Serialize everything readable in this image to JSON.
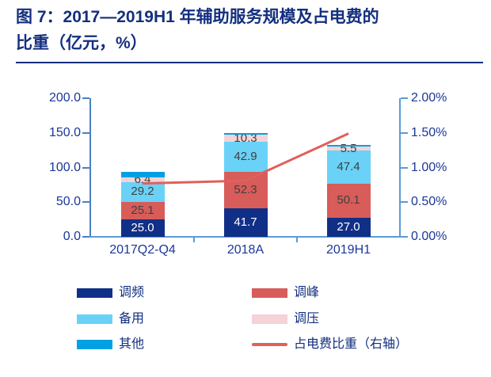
{
  "title": {
    "line1": "图 7：2017—2019H1 年辅助服务规模及占电费的",
    "line2": "比重（亿元，%）"
  },
  "colors": {
    "title_text": "#132F7E",
    "axis_label_text": "#1B3799",
    "data_label_gray": "#404040",
    "data_label_white": "#FFFFFF",
    "left_axis_line": "#4A80C2",
    "right_axis_line": "#5B9BD5",
    "baseline": "#5B9BD5"
  },
  "chart_data": {
    "type": "bar",
    "subtype": "stacked-bar-with-line",
    "categories": [
      "2017Q2-Q4",
      "2018A",
      "2019H1"
    ],
    "series": [
      {
        "name": "调频",
        "color": "#102F87",
        "values": [
          25.0,
          41.7,
          27.0
        ],
        "labels": [
          "25.0",
          "41.7",
          "27.0"
        ],
        "label_color": "#FFFFFF"
      },
      {
        "name": "调峰",
        "color": "#D85C59",
        "values": [
          25.1,
          52.3,
          50.1
        ],
        "labels": [
          "25.1",
          "52.3",
          "50.1"
        ],
        "label_color": "#404040"
      },
      {
        "name": "备用",
        "color": "#69D2F6",
        "values": [
          29.2,
          42.9,
          47.4
        ],
        "labels": [
          "29.2",
          "42.9",
          "47.4"
        ],
        "label_color": "#404040"
      },
      {
        "name": "调压",
        "color": "#F5D2D6",
        "values": [
          6.4,
          10.3,
          5.5
        ],
        "labels": [
          "6.4",
          "10.3",
          "5.5"
        ],
        "label_color": "#404040"
      },
      {
        "name": "其他",
        "color": "#00A1E4",
        "values": [
          8.3,
          2.8,
          2.5
        ],
        "labels": [
          "",
          "",
          ""
        ],
        "label_color": "#404040"
      }
    ],
    "line_series": {
      "name": "占电费比重（右轴）",
      "color": "#E0605A",
      "axis": "right",
      "values": [
        0.77,
        0.81,
        1.49
      ]
    },
    "left_axis": {
      "min": 0,
      "max": 200,
      "step": 50,
      "tick_labels": [
        "0.0",
        "50.0",
        "100.0",
        "150.0",
        "200.0"
      ]
    },
    "right_axis": {
      "min": 0,
      "max": 2,
      "step": 0.5,
      "tick_labels": [
        "0.00%",
        "0.50%",
        "1.00%",
        "1.50%",
        "2.00%"
      ]
    },
    "grid": false,
    "legend_position": "bottom",
    "legend": [
      {
        "label": "调频",
        "swatch": "box",
        "color": "#102F87"
      },
      {
        "label": "调峰",
        "swatch": "box",
        "color": "#D85C59"
      },
      {
        "label": "备用",
        "swatch": "box",
        "color": "#69D2F6"
      },
      {
        "label": "调压",
        "swatch": "box",
        "color": "#F5D2D6"
      },
      {
        "label": "其他",
        "swatch": "box",
        "color": "#00A1E4"
      },
      {
        "label": "占电费比重（右轴）",
        "swatch": "line",
        "color": "#E0605A"
      }
    ]
  }
}
